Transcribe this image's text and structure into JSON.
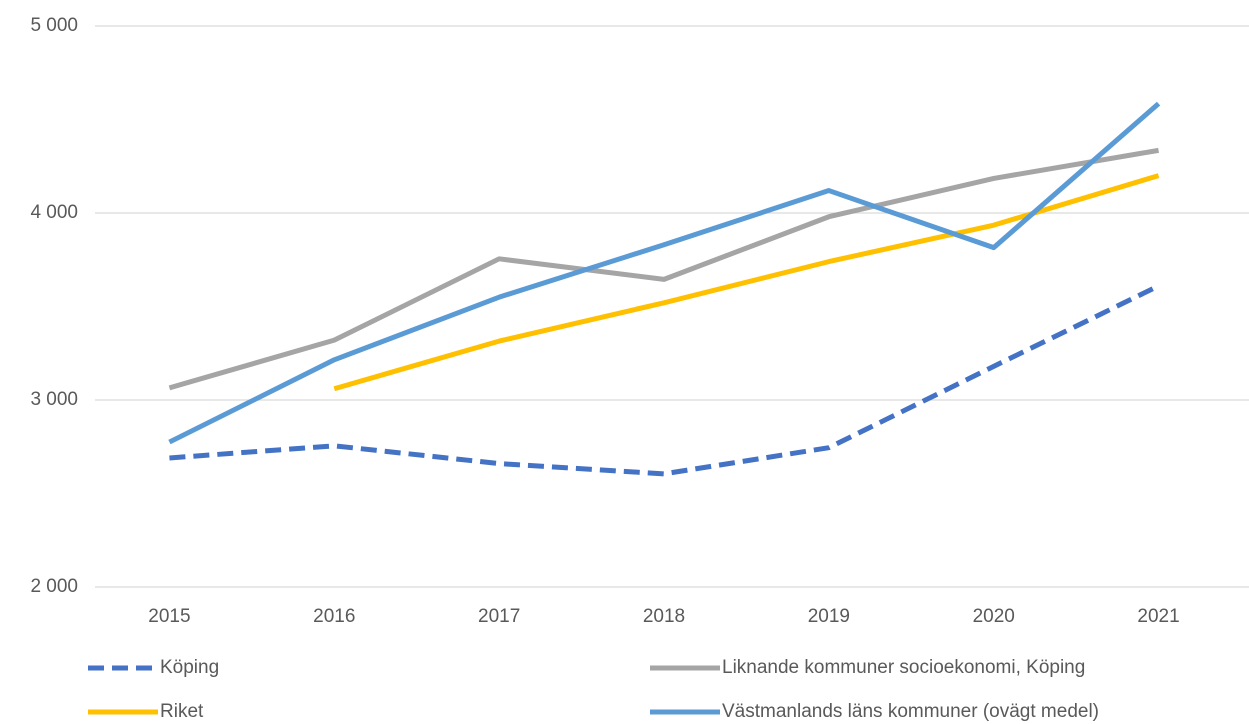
{
  "chart_data": {
    "type": "line",
    "categories": [
      "2015",
      "2016",
      "2017",
      "2018",
      "2019",
      "2020",
      "2021"
    ],
    "series": [
      {
        "name": "Köping",
        "color": "#4472c4",
        "dashed": true,
        "values": [
          2690,
          2755,
          2660,
          2605,
          2745,
          3180,
          3610
        ]
      },
      {
        "name": "Liknande kommuner socioekonomi, Köping",
        "color": "#a5a5a5",
        "dashed": false,
        "values": [
          3065,
          3320,
          3755,
          3645,
          3980,
          4185,
          4335
        ]
      },
      {
        "name": "Riket",
        "color": "#ffc000",
        "dashed": false,
        "values": [
          null,
          3060,
          3315,
          3520,
          3740,
          3935,
          4200
        ]
      },
      {
        "name": "Västmanlands läns kommuner (ovägt medel)",
        "color": "#5b9bd5",
        "dashed": false,
        "values": [
          2775,
          3215,
          3550,
          3830,
          4120,
          3815,
          4585
        ]
      }
    ],
    "ylim": [
      2000,
      5000
    ],
    "yticks": [
      {
        "value": 2000,
        "label": "2 000"
      },
      {
        "value": 3000,
        "label": "3 000"
      },
      {
        "value": 4000,
        "label": "4 000"
      },
      {
        "value": 5000,
        "label": "5 000"
      }
    ],
    "grid": true,
    "legend": "bottom"
  }
}
